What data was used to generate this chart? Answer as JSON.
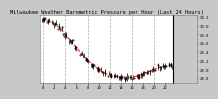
{
  "title": "Milwaukee Weather Barometric Pressure per Hour (Last 24 Hours)",
  "pressure_values": [
    30.15,
    30.1,
    30.05,
    29.95,
    29.8,
    29.65,
    29.5,
    29.35,
    29.22,
    29.1,
    29.0,
    28.92,
    28.88,
    28.85,
    28.82,
    28.8,
    28.82,
    28.85,
    28.9,
    28.95,
    29.0,
    29.05,
    29.08,
    29.1
  ],
  "hours": [
    0,
    1,
    2,
    3,
    4,
    5,
    6,
    7,
    8,
    9,
    10,
    11,
    12,
    13,
    14,
    15,
    16,
    17,
    18,
    19,
    20,
    21,
    22,
    23
  ],
  "ylim": [
    28.7,
    30.25
  ],
  "yticks": [
    28.8,
    29.0,
    29.2,
    29.4,
    29.6,
    29.8,
    30.0,
    30.2
  ],
  "ytick_labels": [
    "28.8",
    "29.0",
    "29.2",
    "29.4",
    "29.6",
    "29.8",
    "30.0",
    "30.2"
  ],
  "line_color": "#ff0000",
  "bg_color": "#c8c8c8",
  "plot_bg": "#ffffff",
  "title_fontsize": 3.8,
  "tick_fontsize": 2.8,
  "grid_color": "#aaaaaa",
  "marker_color": "#000000",
  "vgrid_positions": [
    0,
    4,
    8,
    12,
    16,
    20
  ]
}
